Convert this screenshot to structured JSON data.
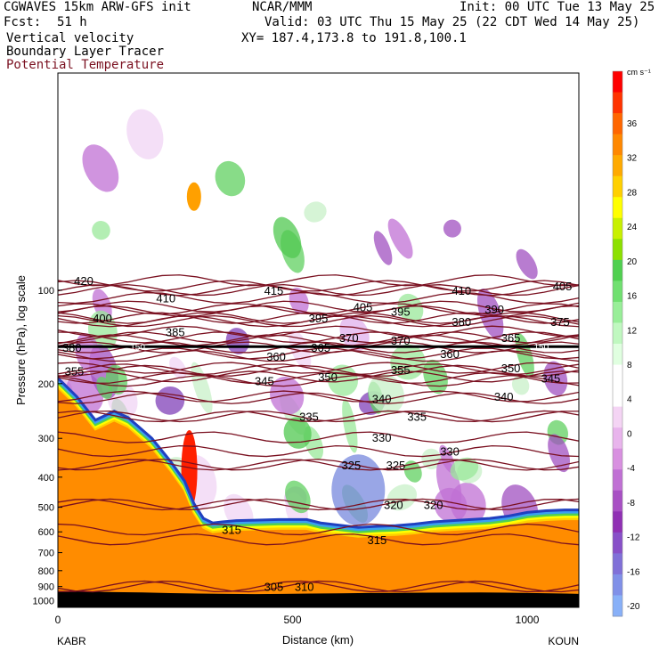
{
  "header": {
    "model": "CGWAVES 15km ARW-GFS init",
    "org": "NCAR/MMM",
    "init": "Init: 00 UTC Tue 13 May 25",
    "fcst_label": "Fcst:",
    "fcst_value": "51 h",
    "valid": "Valid: 03 UTC Thu 15 May 25 (22 CDT Wed 14 May 25)",
    "xy": "XY= 187.4,173.8 to 191.8,100.1",
    "field1": "Vertical velocity",
    "field2": "Boundary Layer Tracer",
    "field3": "Potential Temperature",
    "field3_color": "#7a1020"
  },
  "chart_data": {
    "type": "heatmap",
    "title": "Vertical velocity",
    "xlabel": "Distance (km)",
    "ylabel": "Pressure (hPa), log scale",
    "x_ticks": [
      0,
      500,
      1000
    ],
    "xlim": [
      0,
      1110
    ],
    "y_ticks": [
      100,
      200,
      300,
      400,
      500,
      600,
      700,
      800,
      900,
      1000
    ],
    "ylim": [
      1050,
      20
    ],
    "y_scale": "log",
    "endpoints": {
      "left": "KABR",
      "right": "KOUN"
    },
    "colorbar": {
      "unit": "cm s⁻¹",
      "labels": [
        36,
        32,
        28,
        24,
        20,
        16,
        12,
        8,
        4,
        0,
        -4,
        -8,
        -12,
        -16,
        -20
      ],
      "colors": [
        "#fe0000",
        "#ff3300",
        "#ff6600",
        "#ff8800",
        "#ffaa00",
        "#ffd000",
        "#ffff00",
        "#c8f000",
        "#8ce000",
        "#50d050",
        "#70e070",
        "#98ee98",
        "#c0f8c0",
        "#e0ffe0",
        "#ffffff",
        "#ffffff",
        "#f4d4f4",
        "#e8b4ec",
        "#d890e0",
        "#c070d4",
        "#a850c4",
        "#9030b4",
        "#8850c8",
        "#8070d8",
        "#8090e8",
        "#88b0f8"
      ]
    },
    "theta_labels": [
      {
        "v": "420",
        "x": 55,
        "p": 93
      },
      {
        "v": "410",
        "x": 230,
        "p": 106
      },
      {
        "v": "415",
        "x": 460,
        "p": 100
      },
      {
        "v": "410",
        "x": 860,
        "p": 100
      },
      {
        "v": "405",
        "x": 1075,
        "p": 97
      },
      {
        "v": "400",
        "x": 95,
        "p": 123
      },
      {
        "v": "385",
        "x": 250,
        "p": 136
      },
      {
        "v": "395",
        "x": 555,
        "p": 123
      },
      {
        "v": "405",
        "x": 650,
        "p": 113
      },
      {
        "v": "395",
        "x": 730,
        "p": 117
      },
      {
        "v": "390",
        "x": 930,
        "p": 115
      },
      {
        "v": "380",
        "x": 860,
        "p": 126
      },
      {
        "v": "375",
        "x": 1070,
        "p": 126
      },
      {
        "v": "380",
        "x": 30,
        "p": 153
      },
      {
        "v": "370",
        "x": 620,
        "p": 142
      },
      {
        "v": "370",
        "x": 730,
        "p": 145
      },
      {
        "v": "365",
        "x": 560,
        "p": 153
      },
      {
        "v": "365",
        "x": 965,
        "p": 142
      },
      {
        "v": "360",
        "x": 465,
        "p": 163
      },
      {
        "v": "360",
        "x": 835,
        "p": 160
      },
      {
        "v": "355",
        "x": 35,
        "p": 182
      },
      {
        "v": "355",
        "x": 730,
        "p": 180
      },
      {
        "v": "350",
        "x": 575,
        "p": 190
      },
      {
        "v": "350",
        "x": 965,
        "p": 178
      },
      {
        "v": "345",
        "x": 440,
        "p": 196
      },
      {
        "v": "345",
        "x": 1050,
        "p": 192
      },
      {
        "v": "340",
        "x": 690,
        "p": 223
      },
      {
        "v": "340",
        "x": 950,
        "p": 220
      },
      {
        "v": "335",
        "x": 535,
        "p": 255
      },
      {
        "v": "335",
        "x": 765,
        "p": 255
      },
      {
        "v": "330",
        "x": 690,
        "p": 298
      },
      {
        "v": "330",
        "x": 835,
        "p": 330
      },
      {
        "v": "325",
        "x": 625,
        "p": 365
      },
      {
        "v": "325",
        "x": 720,
        "p": 365
      },
      {
        "v": "320",
        "x": 715,
        "p": 490
      },
      {
        "v": "320",
        "x": 800,
        "p": 490
      },
      {
        "v": "315",
        "x": 370,
        "p": 590
      },
      {
        "v": "315",
        "x": 680,
        "p": 635
      },
      {
        "v": "305",
        "x": 460,
        "p": 900
      },
      {
        "v": "310",
        "x": 525,
        "p": 900
      }
    ],
    "pbl_labels": [
      {
        "v": "150",
        "x": 170,
        "p": 152
      },
      {
        "v": "150",
        "x": 1030,
        "p": 152
      }
    ],
    "terrain_p": [
      [
        0,
        930
      ],
      [
        60,
        935
      ],
      [
        120,
        938
      ],
      [
        180,
        940
      ],
      [
        240,
        945
      ],
      [
        300,
        948
      ],
      [
        360,
        950
      ],
      [
        420,
        952
      ],
      [
        480,
        950
      ],
      [
        540,
        948
      ],
      [
        600,
        946
      ],
      [
        660,
        944
      ],
      [
        720,
        943
      ],
      [
        780,
        942
      ],
      [
        840,
        941
      ],
      [
        900,
        940
      ],
      [
        960,
        942
      ],
      [
        1020,
        945
      ],
      [
        1080,
        948
      ],
      [
        1110,
        950
      ]
    ],
    "surface_p": [
      [
        0,
        205
      ],
      [
        40,
        235
      ],
      [
        80,
        280
      ],
      [
        120,
        262
      ],
      [
        150,
        275
      ],
      [
        200,
        320
      ],
      [
        240,
        380
      ],
      [
        270,
        440
      ],
      [
        290,
        520
      ],
      [
        310,
        580
      ],
      [
        330,
        600
      ],
      [
        350,
        595
      ],
      [
        380,
        590
      ],
      [
        420,
        588
      ],
      [
        470,
        585
      ],
      [
        530,
        585
      ],
      [
        560,
        600
      ],
      [
        600,
        610
      ],
      [
        640,
        620
      ],
      [
        680,
        615
      ],
      [
        720,
        612
      ],
      [
        760,
        605
      ],
      [
        800,
        595
      ],
      [
        840,
        590
      ],
      [
        880,
        585
      ],
      [
        920,
        580
      ],
      [
        960,
        570
      ],
      [
        1000,
        555
      ],
      [
        1040,
        548
      ],
      [
        1080,
        545
      ],
      [
        1110,
        545
      ]
    ]
  }
}
